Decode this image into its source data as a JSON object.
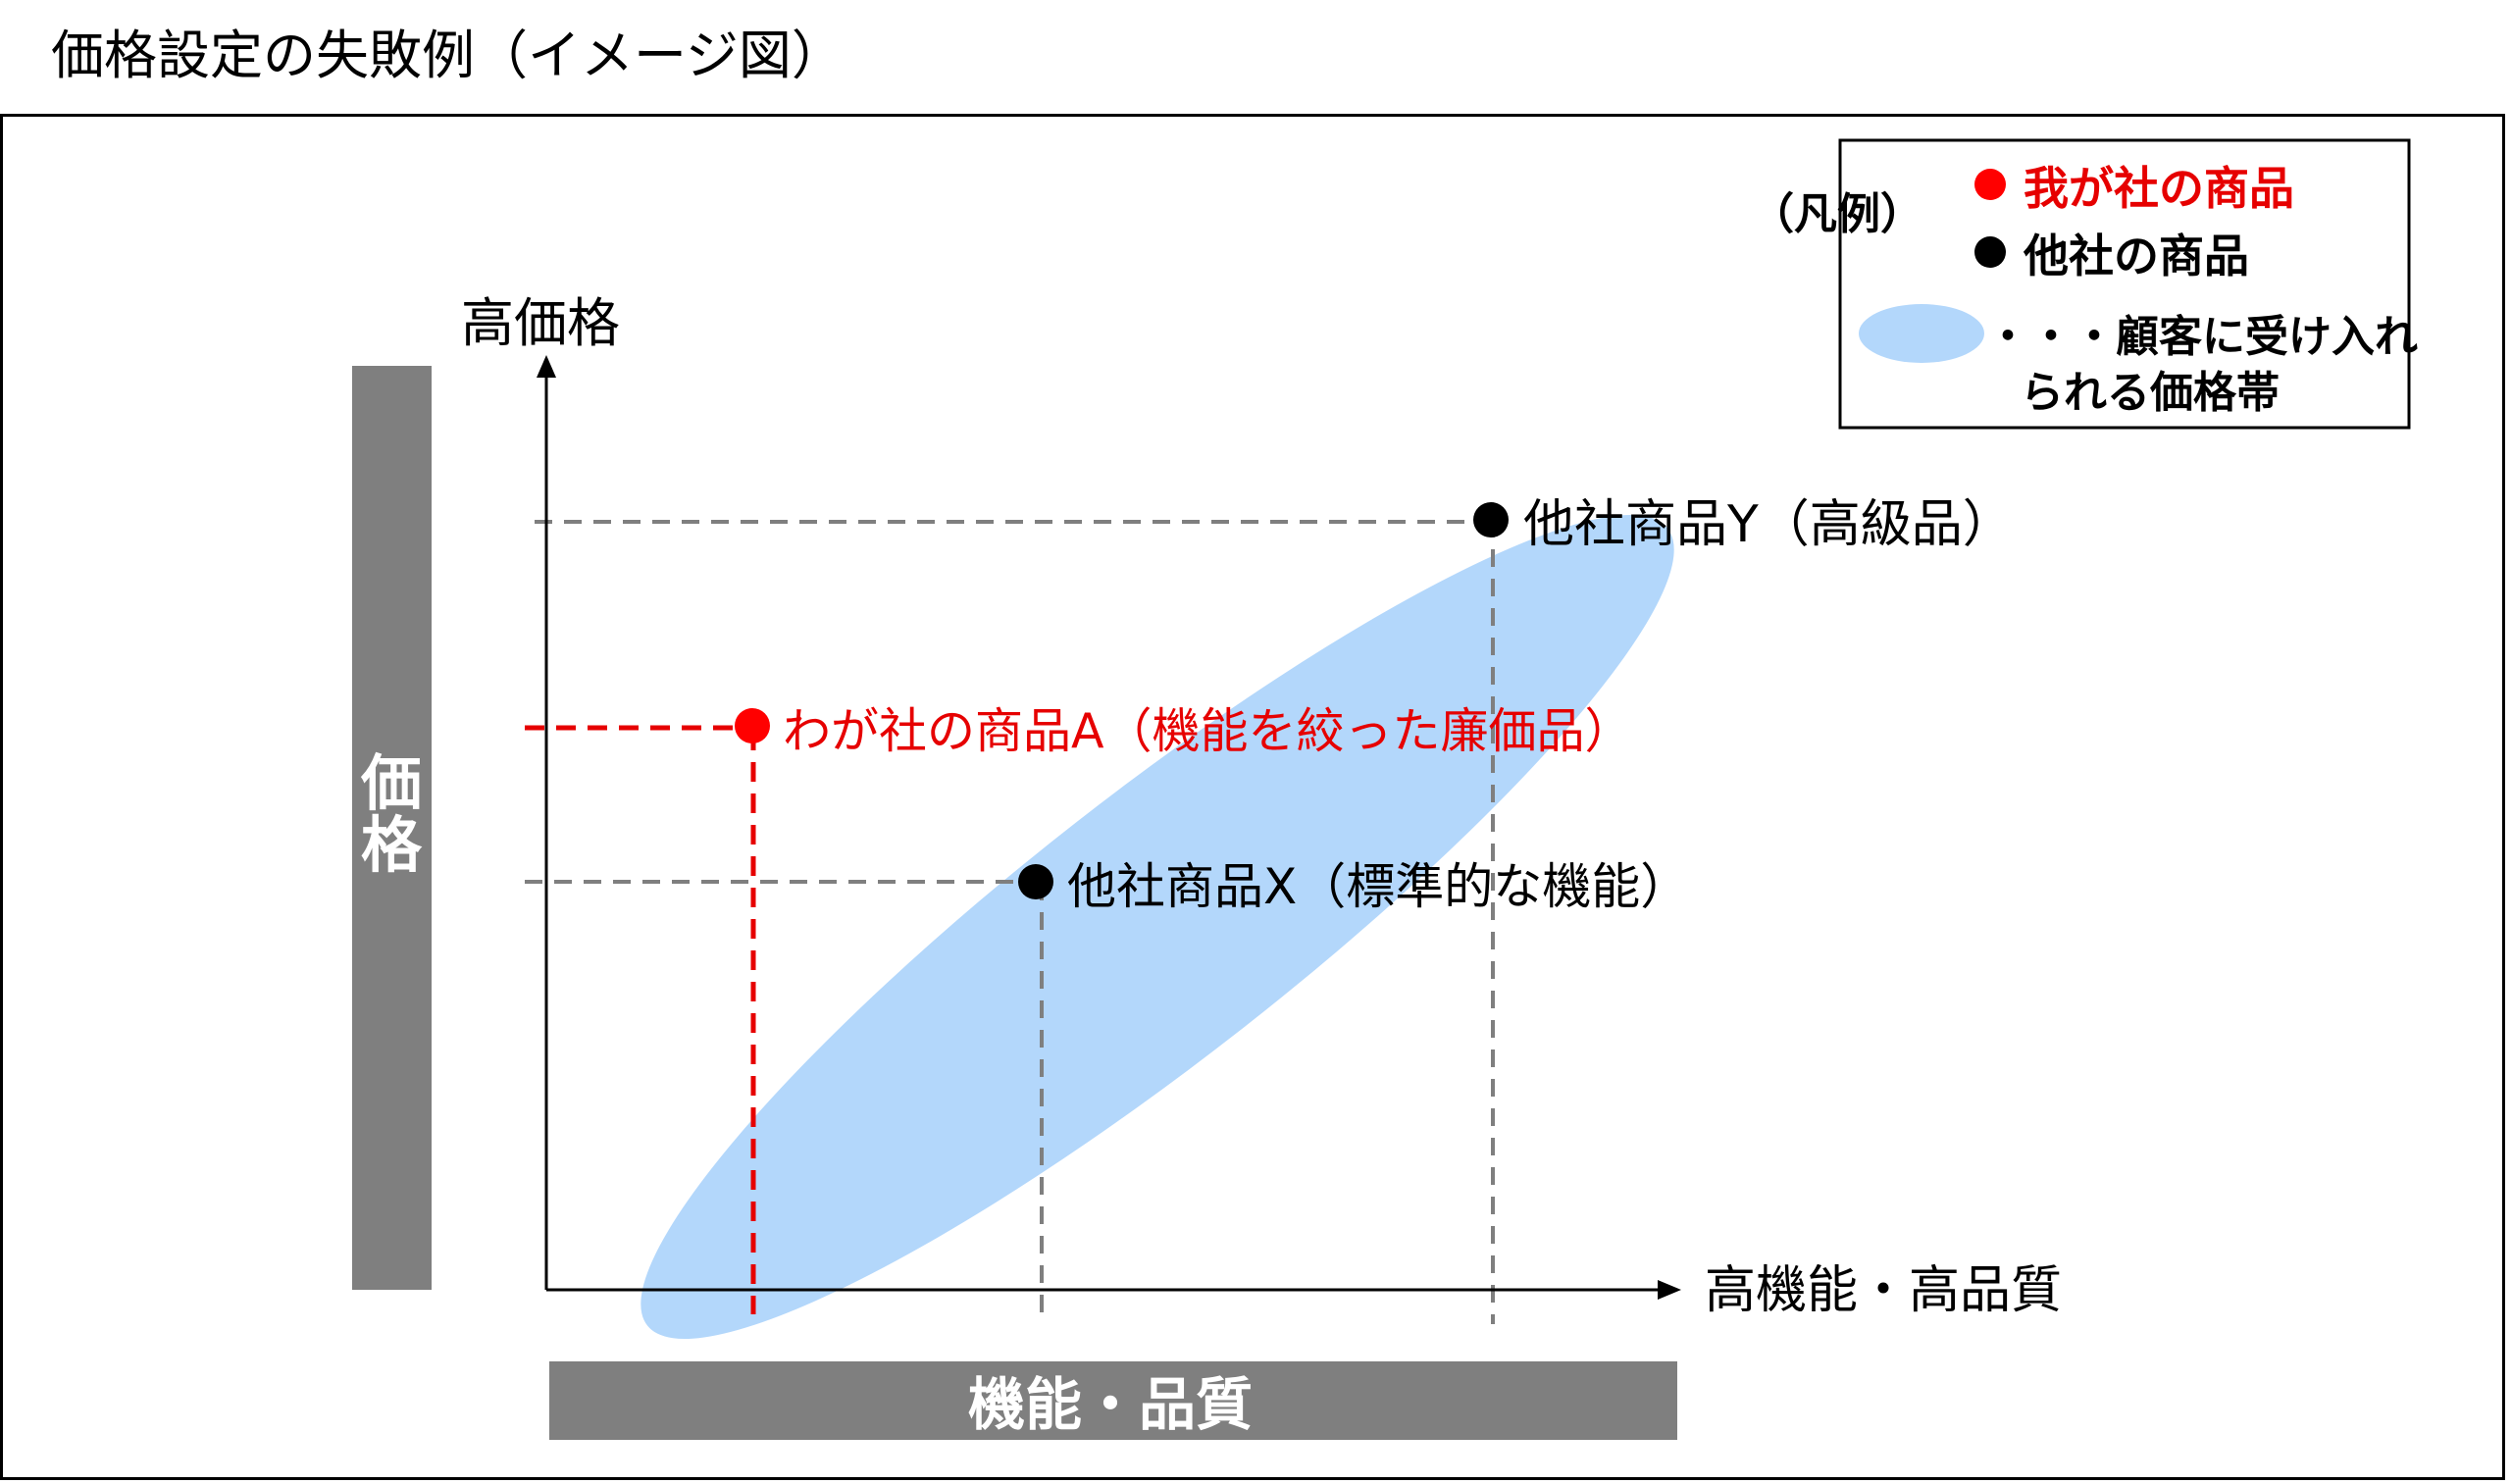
{
  "title": "価格設定の失敗例（イメージ図）",
  "legend": {
    "heading": "（凡例）",
    "own_product": "我が社の商品",
    "other_product": "他社の商品",
    "band_line1": "・・・顧客に受け入れ",
    "band_line2": "られる価格帯"
  },
  "axes": {
    "y_top_label": "高価格",
    "y_side_label_1": "価",
    "y_side_label_2": "格",
    "x_end_label": "高機能・高品質",
    "x_bottom_label": "機能・品質"
  },
  "points": {
    "own_a": "わが社の商品A（機能を絞った廉価品）",
    "other_x": "他社商品X（標準的な機能）",
    "other_y": "他社商品Y（高級品）"
  },
  "colors": {
    "own": "#ff0000",
    "other": "#000000",
    "band": "#b3d7fb",
    "side_bar": "#7f7f7f",
    "guide": "#7f7f7f",
    "own_text": "#e60000"
  }
}
